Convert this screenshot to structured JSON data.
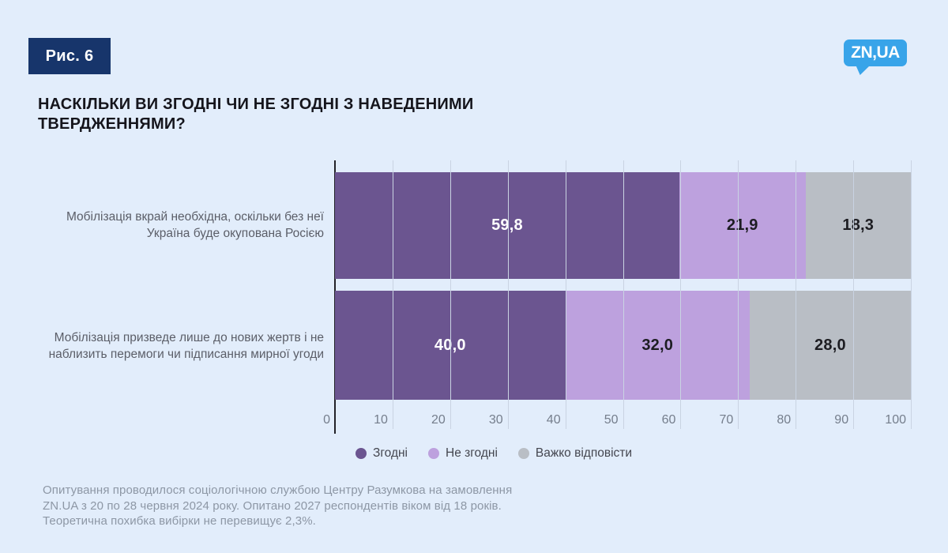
{
  "page": {
    "figure_label": "Рис. 6",
    "logo_text": "ZN,UA",
    "background_color": "#e2edfb",
    "badge_color": "#17356b",
    "logo_color": "#38a4e9"
  },
  "title": {
    "lines": [
      "НАСКІЛЬКИ ВИ ЗГОДНІ ЧИ НЕ ЗГОДНІ З НАВЕДЕНИМИ",
      "ТВЕРДЖЕННЯМИ?"
    ]
  },
  "chart_data": {
    "type": "bar",
    "orientation": "horizontal_stacked",
    "categories": [
      "Мобілізація вкрай необхідна, оскільки без неї Україна буде окупована Росією",
      "Мобілізація призведе лише до нових жертв і не наблизить перемоги чи підписання мирної угоди"
    ],
    "series": [
      {
        "name": "Згодні",
        "color": "#6b5590",
        "label_color": "#ffffff",
        "values": [
          59.8,
          40.0
        ],
        "labels": [
          "59,8",
          "40,0"
        ]
      },
      {
        "name": "Не згодні",
        "color": "#bda1de",
        "label_color": "#1d1d22",
        "values": [
          21.9,
          32.0
        ],
        "labels": [
          "21,9",
          "32,0"
        ]
      },
      {
        "name": "Важко відповісти",
        "color": "#b9bec5",
        "label_color": "#1d1d22",
        "values": [
          18.3,
          28.0
        ],
        "labels": [
          "18,3",
          "28,0"
        ]
      }
    ],
    "xlim": [
      0,
      100
    ],
    "xticks": [
      0,
      10,
      20,
      30,
      40,
      50,
      60,
      70,
      80,
      90,
      100
    ],
    "grid": true,
    "legend_position": "bottom"
  },
  "footer": {
    "lines": [
      "Опитування проводилося соціологічною службою Центру Разумкова на замовлення",
      "ZN.UA з 20 по 28 червня 2024 року. Опитано 2027 респондентів віком від 18 років.",
      "Теоретична похибка вибірки не перевищує 2,3%."
    ]
  }
}
